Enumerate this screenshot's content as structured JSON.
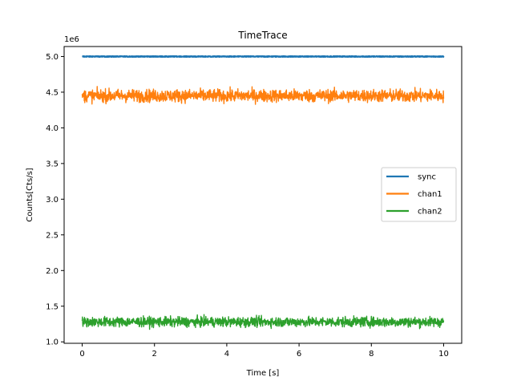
{
  "chart_data": {
    "type": "line",
    "title": "TimeTrace",
    "xlabel": "Time [s]",
    "ylabel": "Counts[Cts/s]",
    "y_offset_label": "1e6",
    "xlim": [
      -0.5,
      10.5
    ],
    "ylim": [
      0.98,
      5.14
    ],
    "x_ticks": [
      0,
      2,
      4,
      6,
      8,
      10
    ],
    "x_tick_labels": [
      "0",
      "2",
      "4",
      "6",
      "8",
      "10"
    ],
    "y_ticks": [
      1.0,
      1.5,
      2.0,
      2.5,
      3.0,
      3.5,
      4.0,
      4.5,
      5.0
    ],
    "y_tick_labels": [
      "1.0",
      "1.5",
      "2.0",
      "2.5",
      "3.0",
      "3.5",
      "4.0",
      "4.5",
      "5.0"
    ],
    "grid": false,
    "legend_position": "center-right",
    "x_range": [
      0,
      10
    ],
    "series": [
      {
        "name": "sync",
        "color": "#1f77b4",
        "mean": 5.0,
        "noise": 0.004,
        "range": [
          4.995,
          5.005
        ]
      },
      {
        "name": "chan1",
        "color": "#ff7f0e",
        "mean": 4.45,
        "noise": 0.045,
        "range": [
          4.3,
          4.62
        ]
      },
      {
        "name": "chan2",
        "color": "#2ca02c",
        "mean": 1.28,
        "noise": 0.035,
        "range": [
          1.16,
          1.39
        ]
      }
    ]
  }
}
